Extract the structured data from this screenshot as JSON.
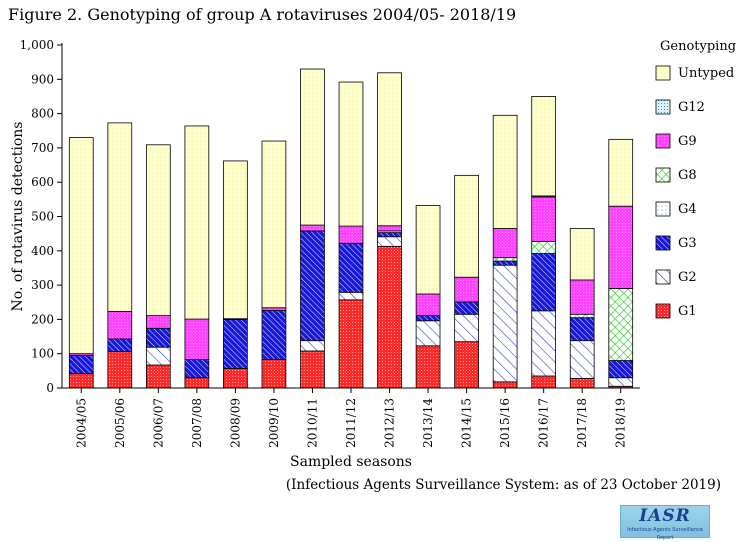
{
  "figure_title": "Figure 2. Genotyping of group A rotaviruses 2004/05- 2018/19",
  "source_note": "(Infectious Agents Surveillance System: as of 23 October 2019)",
  "logo": {
    "main": "IASR",
    "sub": "Infectious Agents Surveillance Report"
  },
  "chart_data": {
    "type": "bar",
    "stacked": true,
    "title": "Figure 2. Genotyping of group A rotaviruses 2004/05- 2018/19",
    "xlabel": "Sampled seasons",
    "ylabel": "No. of rotavirus detections",
    "ylim": [
      0,
      1000
    ],
    "yticks": [
      0,
      100,
      200,
      300,
      400,
      500,
      600,
      700,
      800,
      900,
      1000
    ],
    "ytick_labels": [
      "0",
      "100",
      "200",
      "300",
      "400",
      "500",
      "600",
      "700",
      "800",
      "900",
      "1,000"
    ],
    "grid": false,
    "legend_title": "Genotyping",
    "legend_position": "right",
    "categories": [
      "2004/05",
      "2005/06",
      "2006/07",
      "2007/08",
      "2008/09",
      "2009/10",
      "2010/11",
      "2011/12",
      "2012/13",
      "2013/14",
      "2014/15",
      "2015/16",
      "2016/17",
      "2017/18",
      "2018/19"
    ],
    "series": [
      {
        "name": "G1",
        "color": "#ff2a2a",
        "pattern": "dots",
        "values": [
          42,
          106,
          67,
          30,
          57,
          83,
          108,
          257,
          413,
          123,
          135,
          18,
          35,
          28,
          5
        ]
      },
      {
        "name": "G2",
        "color": "#3344cc",
        "pattern": "diag-light",
        "values": [
          0,
          0,
          52,
          0,
          0,
          0,
          30,
          22,
          28,
          73,
          80,
          340,
          190,
          110,
          25
        ]
      },
      {
        "name": "G3",
        "color": "#1818dd",
        "pattern": "diag-dense",
        "values": [
          53,
          37,
          55,
          53,
          143,
          143,
          320,
          143,
          12,
          15,
          36,
          12,
          167,
          67,
          50
        ]
      },
      {
        "name": "G4",
        "color": "#66aadd",
        "pattern": "light-dots",
        "values": [
          0,
          0,
          0,
          0,
          0,
          0,
          0,
          0,
          5,
          0,
          0,
          0,
          0,
          0,
          0
        ]
      },
      {
        "name": "G8",
        "color": "#22cc22",
        "pattern": "grid",
        "values": [
          0,
          0,
          0,
          0,
          0,
          0,
          0,
          0,
          0,
          0,
          0,
          10,
          35,
          10,
          210
        ]
      },
      {
        "name": "G9",
        "color": "#ff44ff",
        "pattern": "solid",
        "values": [
          5,
          80,
          37,
          118,
          2,
          8,
          17,
          50,
          15,
          63,
          72,
          85,
          130,
          100,
          240
        ]
      },
      {
        "name": "G12",
        "color": "#3399cc",
        "pattern": "fine-dots",
        "values": [
          0,
          0,
          0,
          0,
          0,
          0,
          0,
          0,
          0,
          0,
          0,
          0,
          3,
          0,
          0
        ]
      },
      {
        "name": "Untyped",
        "color": "#ffffcc",
        "pattern": "cream-dots",
        "values": [
          630,
          550,
          498,
          563,
          460,
          486,
          455,
          420,
          446,
          258,
          297,
          330,
          290,
          150,
          195
        ]
      }
    ],
    "legend_order": [
      "Untyped",
      "G12",
      "G9",
      "G8",
      "G4",
      "G3",
      "G2",
      "G1"
    ]
  }
}
